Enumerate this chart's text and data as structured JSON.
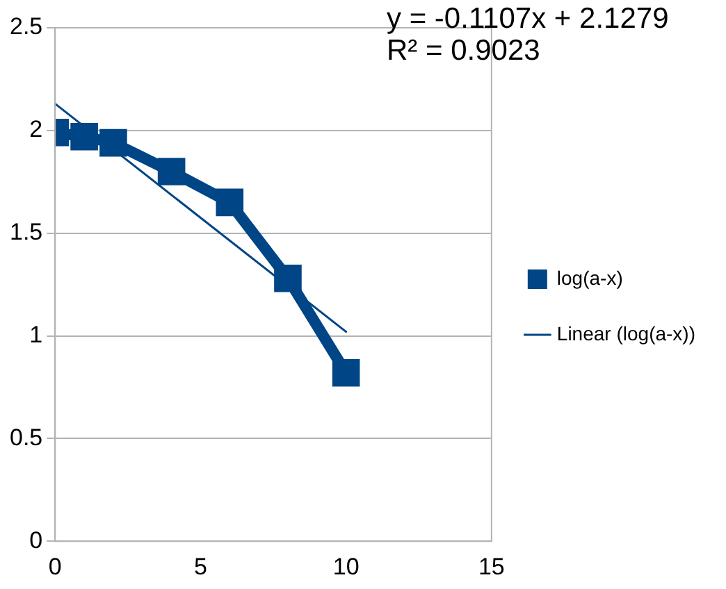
{
  "chart_data": {
    "type": "line",
    "x": [
      0,
      1,
      2,
      4,
      6,
      8,
      10
    ],
    "series": [
      {
        "name": "log(a-x)",
        "color": "#004586",
        "values": [
          1.99,
          1.97,
          1.94,
          1.8,
          1.65,
          1.28,
          0.82
        ],
        "marker": "square"
      },
      {
        "name": "Linear (log(a-x))",
        "color": "#004586",
        "x": [
          0,
          10
        ],
        "values": [
          2.13,
          1.02
        ],
        "marker": "none"
      }
    ],
    "xlim": [
      0,
      15
    ],
    "xticks": [
      0,
      5,
      10,
      15
    ],
    "ylim": [
      0,
      2.5
    ],
    "yticks": [
      0,
      0.5,
      1,
      1.5,
      2,
      2.5
    ],
    "grid": "y",
    "legend": "right",
    "line_style": "solid",
    "annotations": [
      "y = -0.1107x + 2.1279",
      "R² = 0.9023"
    ]
  }
}
